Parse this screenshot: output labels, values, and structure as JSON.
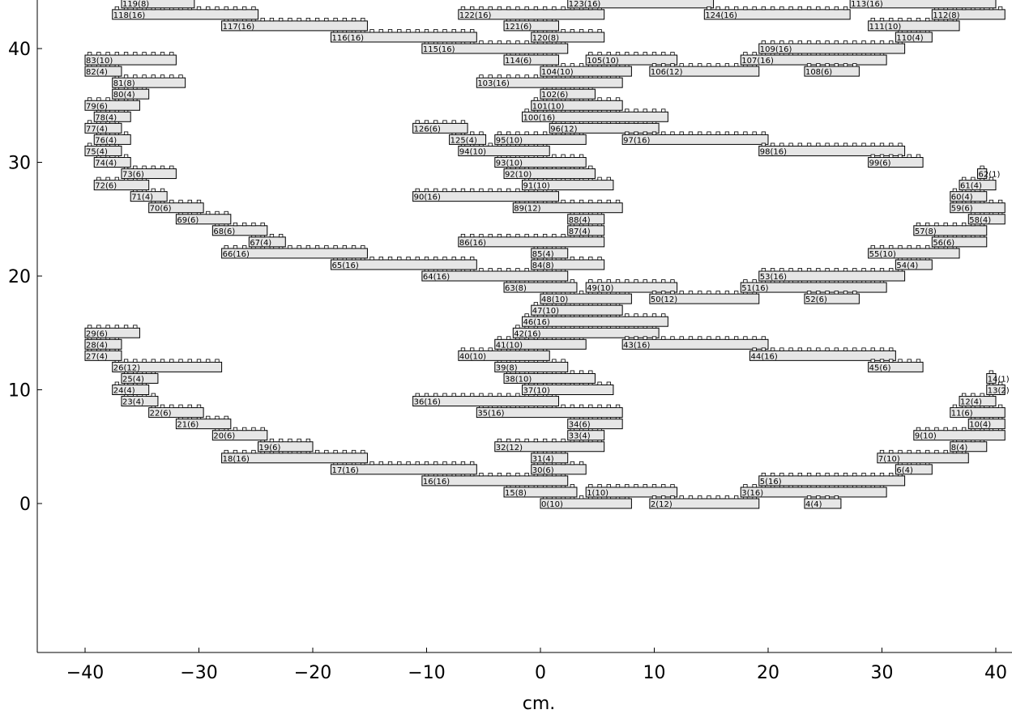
{
  "chart_data": {
    "type": "bar",
    "title": "",
    "xlabel": "cm.",
    "ylabel": "",
    "xlim": [
      -44,
      41
    ],
    "ylim": [
      -13,
      44
    ],
    "xticks": [
      -40,
      -30,
      -20,
      -10,
      0,
      10,
      20,
      30,
      40
    ],
    "yticks": [
      0,
      10,
      20,
      30,
      40
    ],
    "xtick_labels": [
      "−40",
      "−30",
      "−20",
      "−10",
      "0",
      "10",
      "20",
      "30",
      "40"
    ],
    "ytick_labels": [
      "0",
      "10",
      "20",
      "30",
      "40"
    ],
    "grid": false,
    "bricks": [
      {
        "label": "0(10)",
        "x": 0,
        "y": 0,
        "n": 10
      },
      {
        "label": "1(10)",
        "x": 4,
        "y": 1,
        "n": 10
      },
      {
        "label": "2(12)",
        "x": 9.6,
        "y": 0,
        "n": 12
      },
      {
        "label": "3(16)",
        "x": 17.6,
        "y": 1,
        "n": 16
      },
      {
        "label": "4(4)",
        "x": 23.2,
        "y": 0,
        "n": 4
      },
      {
        "label": "5(16)",
        "x": 19.2,
        "y": 2,
        "n": 16
      },
      {
        "label": "6(4)",
        "x": 31.2,
        "y": 3,
        "n": 4
      },
      {
        "label": "7(10)",
        "x": 29.6,
        "y": 4,
        "n": 10
      },
      {
        "label": "8(4)",
        "x": 36,
        "y": 5,
        "n": 4
      },
      {
        "label": "9(10)",
        "x": 32.8,
        "y": 6,
        "n": 10
      },
      {
        "label": "10(4)",
        "x": 37.6,
        "y": 7,
        "n": 4
      },
      {
        "label": "11(6)",
        "x": 36,
        "y": 8,
        "n": 6
      },
      {
        "label": "12(4)",
        "x": 36.8,
        "y": 9,
        "n": 4
      },
      {
        "label": "13(2)",
        "x": 39.2,
        "y": 10,
        "n": 2
      },
      {
        "label": "14(1)",
        "x": 39.2,
        "y": 11,
        "n": 1
      },
      {
        "label": "15(8)",
        "x": -3.2,
        "y": 1,
        "n": 8
      },
      {
        "label": "16(16)",
        "x": -10.4,
        "y": 2,
        "n": 16
      },
      {
        "label": "17(16)",
        "x": -18.4,
        "y": 3,
        "n": 16
      },
      {
        "label": "18(16)",
        "x": -28,
        "y": 4,
        "n": 16
      },
      {
        "label": "19(6)",
        "x": -24.8,
        "y": 5,
        "n": 6
      },
      {
        "label": "20(6)",
        "x": -28.8,
        "y": 6,
        "n": 6
      },
      {
        "label": "21(6)",
        "x": -32,
        "y": 7,
        "n": 6
      },
      {
        "label": "22(6)",
        "x": -34.4,
        "y": 8,
        "n": 6
      },
      {
        "label": "23(4)",
        "x": -36.8,
        "y": 9,
        "n": 4
      },
      {
        "label": "24(4)",
        "x": -37.6,
        "y": 10,
        "n": 4
      },
      {
        "label": "25(4)",
        "x": -36.8,
        "y": 11,
        "n": 4
      },
      {
        "label": "26(12)",
        "x": -37.6,
        "y": 12,
        "n": 12
      },
      {
        "label": "27(4)",
        "x": -40,
        "y": 13,
        "n": 4
      },
      {
        "label": "28(4)",
        "x": -40,
        "y": 14,
        "n": 4
      },
      {
        "label": "29(6)",
        "x": -40,
        "y": 15,
        "n": 6
      },
      {
        "label": "30(6)",
        "x": -0.8,
        "y": 3,
        "n": 6
      },
      {
        "label": "31(4)",
        "x": -0.8,
        "y": 4,
        "n": 4
      },
      {
        "label": "32(12)",
        "x": -4,
        "y": 5,
        "n": 12
      },
      {
        "label": "33(4)",
        "x": 2.4,
        "y": 6,
        "n": 4
      },
      {
        "label": "34(6)",
        "x": 2.4,
        "y": 7,
        "n": 6
      },
      {
        "label": "35(16)",
        "x": -5.6,
        "y": 8,
        "n": 16
      },
      {
        "label": "36(16)",
        "x": -11.2,
        "y": 9,
        "n": 16
      },
      {
        "label": "37(10)",
        "x": -1.6,
        "y": 10,
        "n": 10
      },
      {
        "label": "38(10)",
        "x": -3.2,
        "y": 11,
        "n": 10
      },
      {
        "label": "39(8)",
        "x": -4,
        "y": 12,
        "n": 8
      },
      {
        "label": "40(10)",
        "x": -7.2,
        "y": 13,
        "n": 10
      },
      {
        "label": "41(10)",
        "x": -4,
        "y": 14,
        "n": 10
      },
      {
        "label": "42(16)",
        "x": -2.4,
        "y": 15,
        "n": 16
      },
      {
        "label": "43(16)",
        "x": 7.2,
        "y": 14,
        "n": 16
      },
      {
        "label": "44(16)",
        "x": 18.4,
        "y": 13,
        "n": 16
      },
      {
        "label": "45(6)",
        "x": 28.8,
        "y": 12,
        "n": 6
      },
      {
        "label": "46(16)",
        "x": -1.6,
        "y": 16,
        "n": 16
      },
      {
        "label": "47(10)",
        "x": -0.8,
        "y": 17,
        "n": 10
      },
      {
        "label": "48(10)",
        "x": 0,
        "y": 18,
        "n": 10
      },
      {
        "label": "49(10)",
        "x": 4,
        "y": 19,
        "n": 10
      },
      {
        "label": "50(12)",
        "x": 9.6,
        "y": 18,
        "n": 12
      },
      {
        "label": "51(16)",
        "x": 17.6,
        "y": 19,
        "n": 16
      },
      {
        "label": "52(6)",
        "x": 23.2,
        "y": 18,
        "n": 6
      },
      {
        "label": "53(16)",
        "x": 19.2,
        "y": 20,
        "n": 16
      },
      {
        "label": "54(4)",
        "x": 31.2,
        "y": 21,
        "n": 4
      },
      {
        "label": "55(10)",
        "x": 28.8,
        "y": 22,
        "n": 10
      },
      {
        "label": "56(6)",
        "x": 34.4,
        "y": 23,
        "n": 6
      },
      {
        "label": "57(8)",
        "x": 32.8,
        "y": 24,
        "n": 8
      },
      {
        "label": "58(4)",
        "x": 37.6,
        "y": 25,
        "n": 4
      },
      {
        "label": "59(6)",
        "x": 36,
        "y": 26,
        "n": 6
      },
      {
        "label": "60(4)",
        "x": 36,
        "y": 27,
        "n": 4
      },
      {
        "label": "61(4)",
        "x": 36.8,
        "y": 28,
        "n": 4
      },
      {
        "label": "62(1)",
        "x": 38.4,
        "y": 29,
        "n": 1
      },
      {
        "label": "63(8)",
        "x": -3.2,
        "y": 19,
        "n": 8
      },
      {
        "label": "64(16)",
        "x": -10.4,
        "y": 20,
        "n": 16
      },
      {
        "label": "65(16)",
        "x": -18.4,
        "y": 21,
        "n": 16
      },
      {
        "label": "66(16)",
        "x": -28,
        "y": 22,
        "n": 16
      },
      {
        "label": "67(4)",
        "x": -25.6,
        "y": 23,
        "n": 4
      },
      {
        "label": "68(6)",
        "x": -28.8,
        "y": 24,
        "n": 6
      },
      {
        "label": "69(6)",
        "x": -32,
        "y": 25,
        "n": 6
      },
      {
        "label": "70(6)",
        "x": -34.4,
        "y": 26,
        "n": 6
      },
      {
        "label": "71(4)",
        "x": -36,
        "y": 27,
        "n": 4
      },
      {
        "label": "72(6)",
        "x": -39.2,
        "y": 28,
        "n": 6
      },
      {
        "label": "73(6)",
        "x": -36.8,
        "y": 29,
        "n": 6
      },
      {
        "label": "74(4)",
        "x": -39.2,
        "y": 30,
        "n": 4
      },
      {
        "label": "75(4)",
        "x": -40,
        "y": 31,
        "n": 4
      },
      {
        "label": "76(4)",
        "x": -39.2,
        "y": 32,
        "n": 4
      },
      {
        "label": "77(4)",
        "x": -40,
        "y": 33,
        "n": 4
      },
      {
        "label": "78(4)",
        "x": -39.2,
        "y": 34,
        "n": 4
      },
      {
        "label": "79(6)",
        "x": -40,
        "y": 35,
        "n": 6
      },
      {
        "label": "80(4)",
        "x": -37.6,
        "y": 36,
        "n": 4
      },
      {
        "label": "81(8)",
        "x": -37.6,
        "y": 37,
        "n": 8
      },
      {
        "label": "82(4)",
        "x": -40,
        "y": 38,
        "n": 4
      },
      {
        "label": "83(10)",
        "x": -40,
        "y": 39,
        "n": 10
      },
      {
        "label": "84(8)",
        "x": -0.8,
        "y": 21,
        "n": 8
      },
      {
        "label": "85(4)",
        "x": -0.8,
        "y": 22,
        "n": 4
      },
      {
        "label": "86(16)",
        "x": -7.2,
        "y": 23,
        "n": 16
      },
      {
        "label": "87(4)",
        "x": 2.4,
        "y": 24,
        "n": 4
      },
      {
        "label": "88(4)",
        "x": 2.4,
        "y": 25,
        "n": 4
      },
      {
        "label": "89(12)",
        "x": -2.4,
        "y": 26,
        "n": 12
      },
      {
        "label": "90(16)",
        "x": -11.2,
        "y": 27,
        "n": 16
      },
      {
        "label": "91(10)",
        "x": -1.6,
        "y": 28,
        "n": 10
      },
      {
        "label": "92(10)",
        "x": -3.2,
        "y": 29,
        "n": 10
      },
      {
        "label": "93(10)",
        "x": -4,
        "y": 30,
        "n": 10
      },
      {
        "label": "94(10)",
        "x": -7.2,
        "y": 31,
        "n": 10
      },
      {
        "label": "95(10)",
        "x": -4,
        "y": 32,
        "n": 10
      },
      {
        "label": "96(12)",
        "x": 0.8,
        "y": 33,
        "n": 12
      },
      {
        "label": "97(16)",
        "x": 7.2,
        "y": 32,
        "n": 16
      },
      {
        "label": "98(16)",
        "x": 19.2,
        "y": 31,
        "n": 16
      },
      {
        "label": "99(6)",
        "x": 28.8,
        "y": 30,
        "n": 6
      },
      {
        "label": "100(16)",
        "x": -1.6,
        "y": 34,
        "n": 16
      },
      {
        "label": "101(10)",
        "x": -0.8,
        "y": 35,
        "n": 10
      },
      {
        "label": "102(6)",
        "x": 0,
        "y": 36,
        "n": 6
      },
      {
        "label": "103(16)",
        "x": -5.6,
        "y": 37,
        "n": 16
      },
      {
        "label": "104(10)",
        "x": 0,
        "y": 38,
        "n": 10
      },
      {
        "label": "105(10)",
        "x": 4,
        "y": 39,
        "n": 10
      },
      {
        "label": "106(12)",
        "x": 9.6,
        "y": 38,
        "n": 12
      },
      {
        "label": "107(16)",
        "x": 17.6,
        "y": 39,
        "n": 16
      },
      {
        "label": "108(6)",
        "x": 23.2,
        "y": 38,
        "n": 6
      },
      {
        "label": "109(16)",
        "x": 19.2,
        "y": 40,
        "n": 16
      },
      {
        "label": "110(4)",
        "x": 31.2,
        "y": 41,
        "n": 4
      },
      {
        "label": "111(10)",
        "x": 28.8,
        "y": 42,
        "n": 10
      },
      {
        "label": "112(8)",
        "x": 34.4,
        "y": 43,
        "n": 8
      },
      {
        "label": "113(16)",
        "x": 27.2,
        "y": 44,
        "n": 16
      },
      {
        "label": "114(6)",
        "x": -3.2,
        "y": 39,
        "n": 6
      },
      {
        "label": "115(16)",
        "x": -10.4,
        "y": 40,
        "n": 16
      },
      {
        "label": "116(16)",
        "x": -18.4,
        "y": 41,
        "n": 16
      },
      {
        "label": "117(16)",
        "x": -28,
        "y": 42,
        "n": 16
      },
      {
        "label": "118(16)",
        "x": -37.6,
        "y": 43,
        "n": 16
      },
      {
        "label": "119(8)",
        "x": -36.8,
        "y": 44,
        "n": 8
      },
      {
        "label": "120(8)",
        "x": -0.8,
        "y": 41,
        "n": 8
      },
      {
        "label": "121(6)",
        "x": -3.2,
        "y": 42,
        "n": 6
      },
      {
        "label": "122(16)",
        "x": -7.2,
        "y": 43,
        "n": 16
      },
      {
        "label": "123(16)",
        "x": 2.4,
        "y": 44,
        "n": 16
      },
      {
        "label": "124(16)",
        "x": 14.4,
        "y": 43,
        "n": 16
      },
      {
        "label": "125(4)",
        "x": -8,
        "y": 32,
        "n": 4
      },
      {
        "label": "126(6)",
        "x": -11.2,
        "y": 33,
        "n": 6
      }
    ]
  }
}
